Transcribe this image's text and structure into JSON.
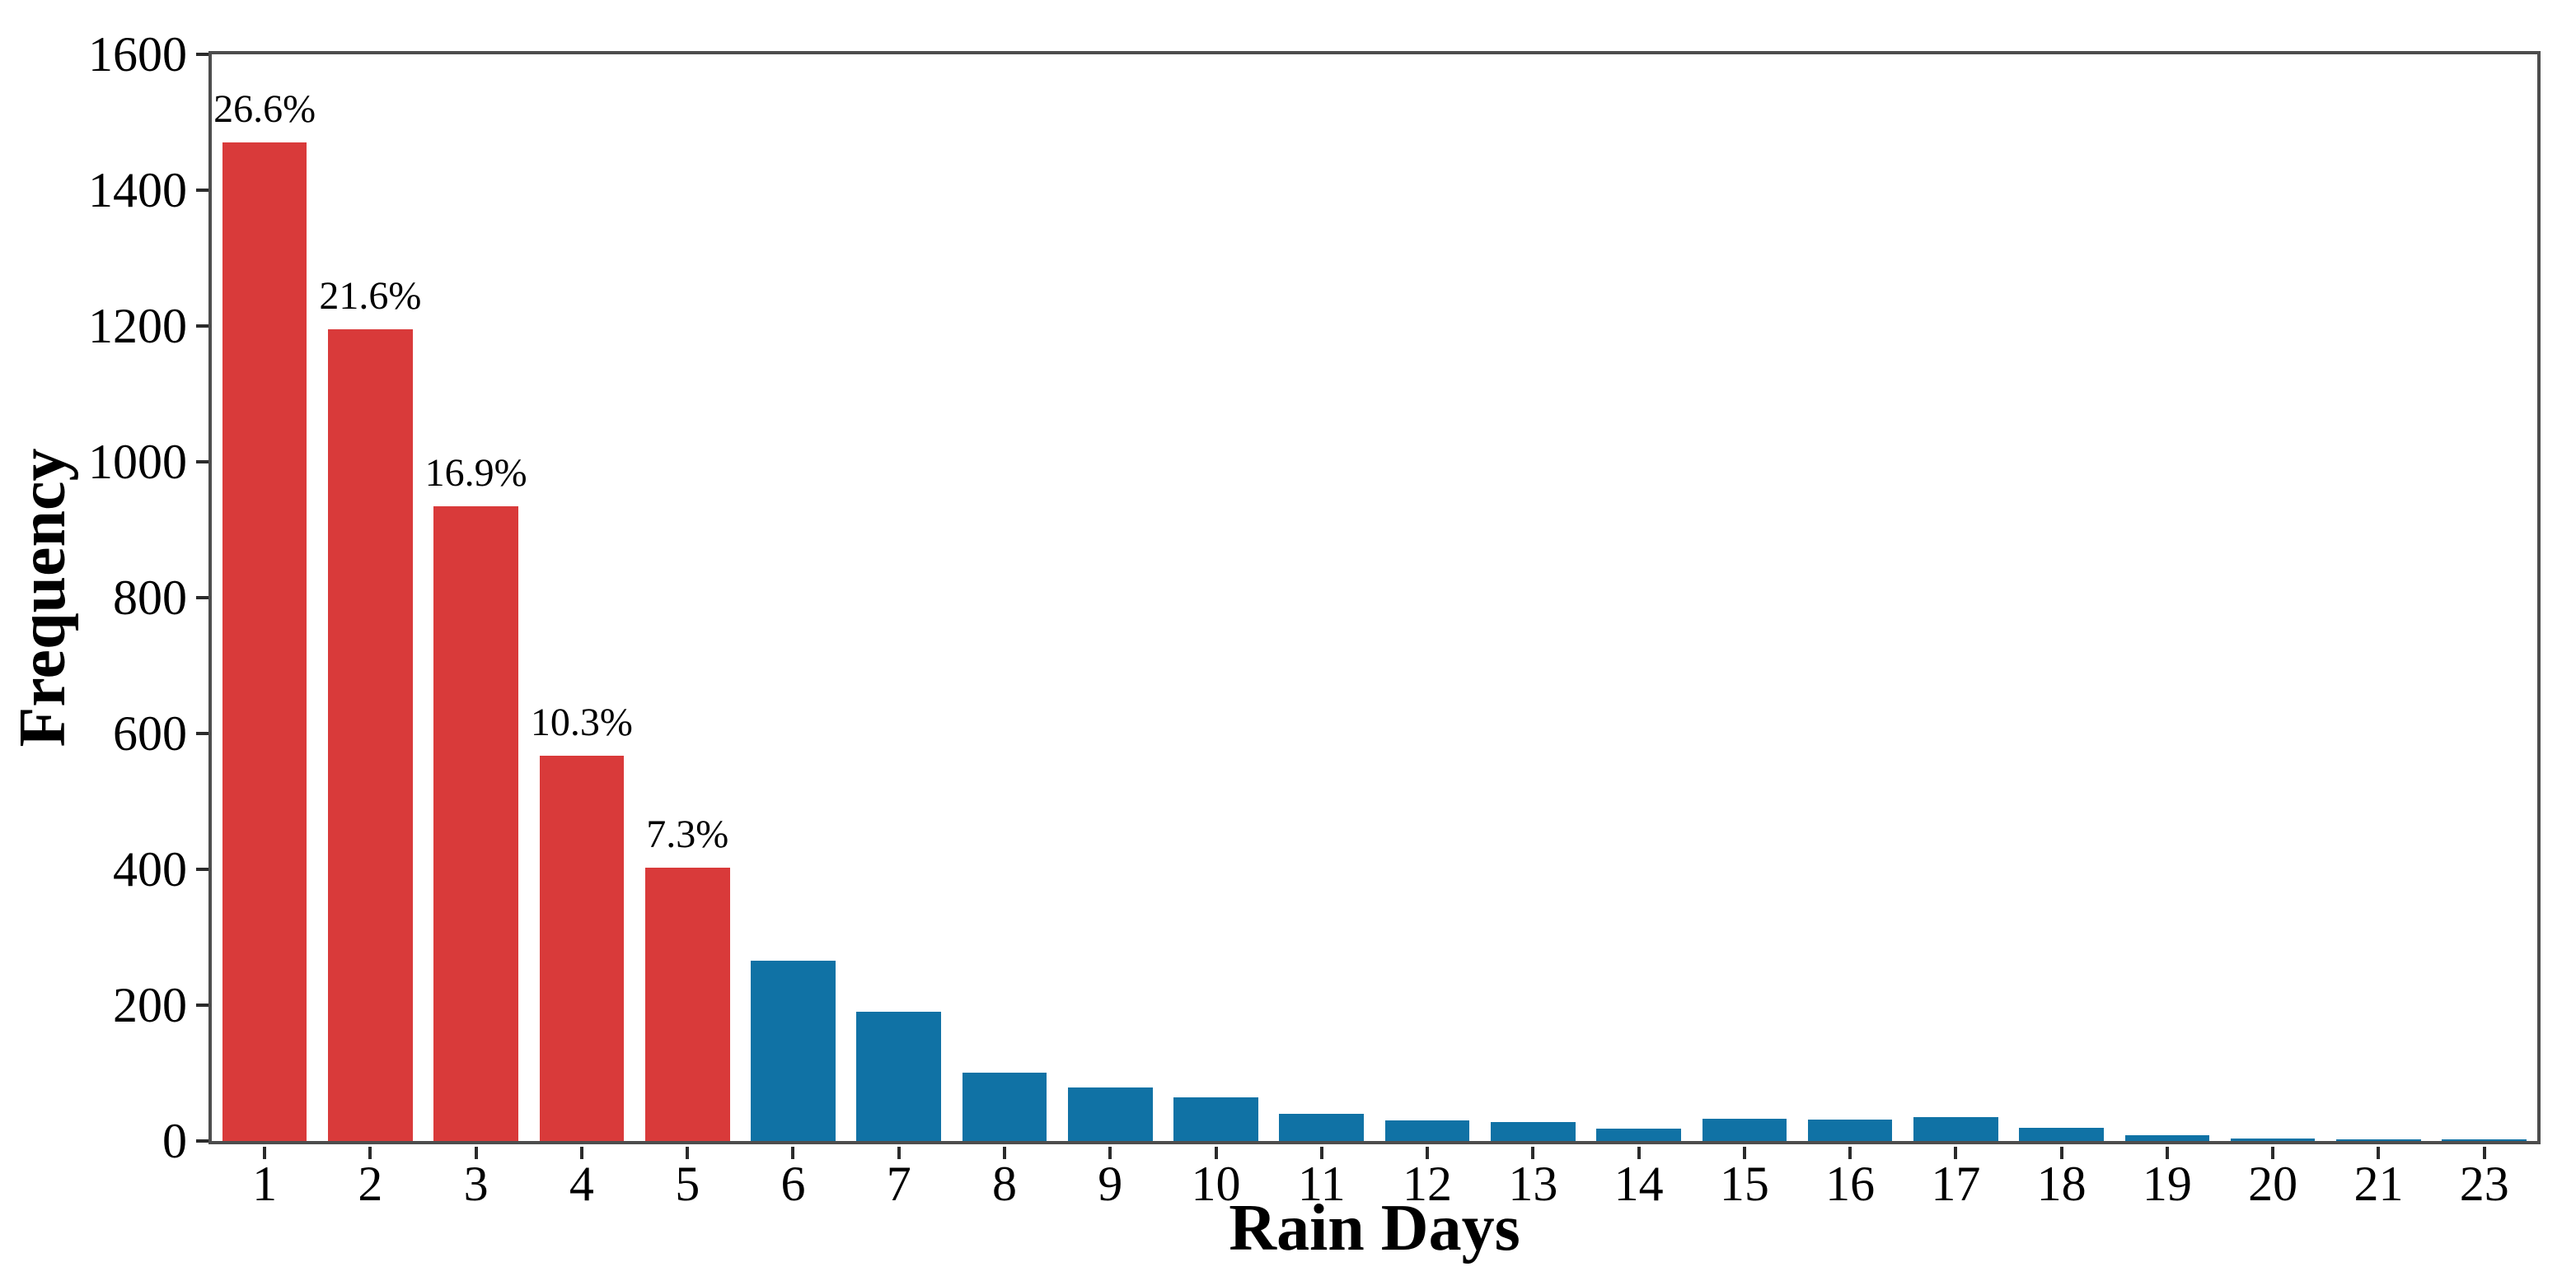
{
  "style": {
    "background": "#ffffff",
    "bar_red": "#d93a3a",
    "bar_blue": "#1072a5",
    "spine_color": "#4d4d4d",
    "tick_color": "#2b2b2b",
    "text_color": "#000000"
  },
  "chart_data": {
    "type": "bar",
    "title": "",
    "xlabel": "Rain Days",
    "ylabel": "Frequency",
    "ylim": [
      0,
      1600
    ],
    "yticks": [
      0,
      200,
      400,
      600,
      800,
      1000,
      1200,
      1400,
      1600
    ],
    "grid": false,
    "legend": null,
    "bars": [
      {
        "category": "1",
        "value": 1470,
        "label": "26.6%",
        "color": "#d93a3a"
      },
      {
        "category": "2",
        "value": 1195,
        "label": "21.6%",
        "color": "#d93a3a"
      },
      {
        "category": "3",
        "value": 934,
        "label": "16.9%",
        "color": "#d93a3a"
      },
      {
        "category": "4",
        "value": 567,
        "label": "10.3%",
        "color": "#d93a3a"
      },
      {
        "category": "5",
        "value": 403,
        "label": "7.3%",
        "color": "#d93a3a"
      },
      {
        "category": "6",
        "value": 265,
        "label": "",
        "color": "#1072a5"
      },
      {
        "category": "7",
        "value": 190,
        "label": "",
        "color": "#1072a5"
      },
      {
        "category": "8",
        "value": 101,
        "label": "",
        "color": "#1072a5"
      },
      {
        "category": "9",
        "value": 79,
        "label": "",
        "color": "#1072a5"
      },
      {
        "category": "10",
        "value": 64,
        "label": "",
        "color": "#1072a5"
      },
      {
        "category": "11",
        "value": 40,
        "label": "",
        "color": "#1072a5"
      },
      {
        "category": "12",
        "value": 30,
        "label": "",
        "color": "#1072a5"
      },
      {
        "category": "13",
        "value": 28,
        "label": "",
        "color": "#1072a5"
      },
      {
        "category": "14",
        "value": 18,
        "label": "",
        "color": "#1072a5"
      },
      {
        "category": "15",
        "value": 33,
        "label": "",
        "color": "#1072a5"
      },
      {
        "category": "16",
        "value": 31,
        "label": "",
        "color": "#1072a5"
      },
      {
        "category": "17",
        "value": 35,
        "label": "",
        "color": "#1072a5"
      },
      {
        "category": "18",
        "value": 20,
        "label": "",
        "color": "#1072a5"
      },
      {
        "category": "19",
        "value": 8,
        "label": "",
        "color": "#1072a5"
      },
      {
        "category": "20",
        "value": 4,
        "label": "",
        "color": "#1072a5"
      },
      {
        "category": "21",
        "value": 2,
        "label": "",
        "color": "#1072a5"
      },
      {
        "category": "23",
        "value": 3,
        "label": "",
        "color": "#1072a5"
      }
    ]
  }
}
